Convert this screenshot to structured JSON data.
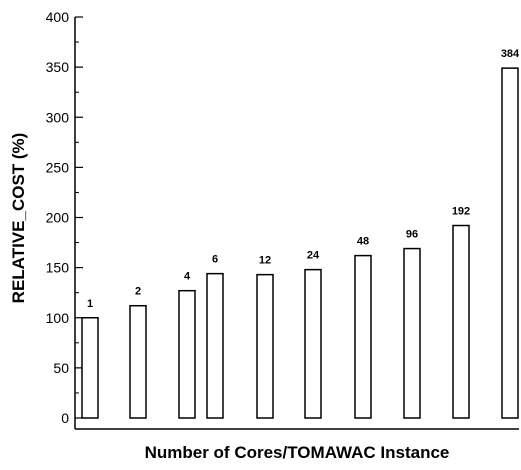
{
  "chart_data": {
    "type": "bar",
    "title": "",
    "xlabel": "Number of Cores/TOMAWAC Instance",
    "ylabel": "RELATIVE_COST (%)",
    "ylim": [
      0,
      400
    ],
    "yticks": [
      0,
      50,
      100,
      150,
      200,
      250,
      300,
      350,
      400
    ],
    "grid": false,
    "legend": "none",
    "categories": [
      "1",
      "2",
      "4",
      "6",
      "12",
      "24",
      "48",
      "96",
      "192",
      "384"
    ],
    "values": [
      100,
      112,
      127,
      144,
      143,
      148,
      162,
      169,
      192,
      349
    ],
    "bar_color": "#ffffff",
    "edge_color": "#000000"
  }
}
